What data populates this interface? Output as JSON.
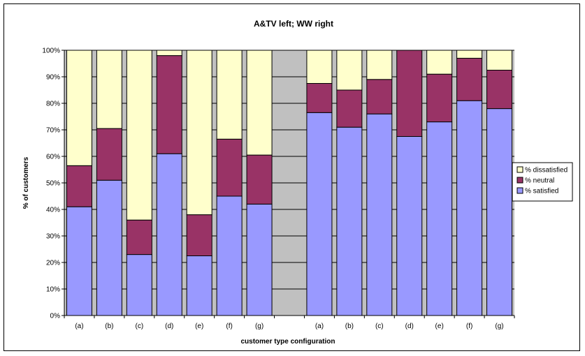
{
  "chart_data": {
    "type": "bar",
    "stacked": "percent",
    "title": "A&TV left; WW right",
    "xlabel": "customer type configuration",
    "ylabel": "% of customers",
    "ylim": [
      0,
      100
    ],
    "yticks": [
      "0%",
      "10%",
      "20%",
      "30%",
      "40%",
      "50%",
      "60%",
      "70%",
      "80%",
      "90%",
      "100%"
    ],
    "categories": [
      "(a)",
      "(b)",
      "(c)",
      "(d)",
      "(e)",
      "(f)",
      "(g)",
      "",
      "(a)",
      "(b)",
      "(c)",
      "(d)",
      "(e)",
      "(f)",
      "(g)"
    ],
    "series": [
      {
        "name": "% satisfied",
        "color": "#9999ff",
        "values": [
          41,
          51,
          23,
          61,
          22.5,
          45,
          42,
          null,
          76.5,
          71,
          76,
          67.5,
          73,
          81,
          78
        ]
      },
      {
        "name": "% neutral",
        "color": "#993366",
        "values": [
          15.5,
          19.5,
          13,
          37,
          15.5,
          21.5,
          18.5,
          null,
          11,
          14,
          13,
          32.5,
          18,
          16,
          14.5
        ]
      },
      {
        "name": "% dissatisfied",
        "color": "#ffffcc",
        "values": [
          43.5,
          29.5,
          64,
          2,
          62,
          33.5,
          39.5,
          null,
          12.5,
          15,
          11,
          0,
          9,
          3,
          7.5
        ]
      }
    ],
    "plot_area_color": "#c0c0c0",
    "grid": true,
    "legend_position": "right"
  }
}
